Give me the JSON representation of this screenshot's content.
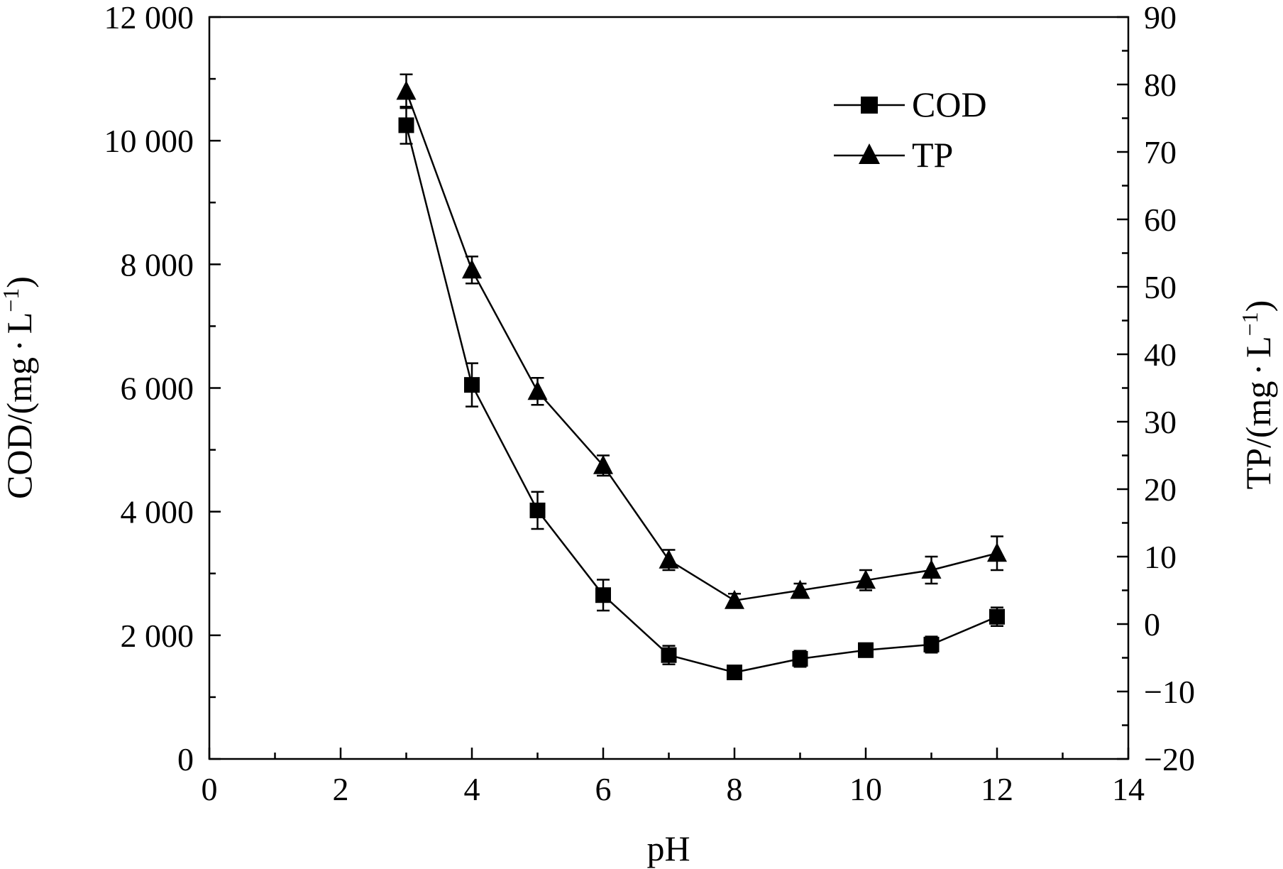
{
  "chart_data": {
    "type": "line",
    "xlabel": "pH",
    "ylabel_left_prefix": "COD/(mg",
    "ylabel_right_prefix": "TP/(mg",
    "ylabel_unit_tail": "L",
    "ylabel_unit_exp": "−1",
    "ylabel_close": ")",
    "ylabel_dot": "·",
    "xlim": [
      0,
      14
    ],
    "ylim_left": [
      0,
      12000
    ],
    "ylim_right": [
      -20,
      90
    ],
    "x_ticks": [
      0,
      2,
      4,
      6,
      8,
      10,
      12,
      14
    ],
    "x_tick_labels": [
      "0",
      "2",
      "4",
      "6",
      "8",
      "10",
      "12",
      "14"
    ],
    "left_ticks": [
      0,
      2000,
      4000,
      6000,
      8000,
      10000,
      12000
    ],
    "left_tick_labels": [
      "0",
      "2 000",
      "4 000",
      "6 000",
      "8 000",
      "10 000",
      "12 000"
    ],
    "right_ticks": [
      -20,
      -10,
      0,
      10,
      20,
      30,
      40,
      50,
      60,
      70,
      80,
      90
    ],
    "right_tick_labels": [
      "−20",
      "−10",
      "0",
      "10",
      "20",
      "30",
      "40",
      "50",
      "60",
      "70",
      "80",
      "90"
    ],
    "legend_position": "top-right",
    "grid": false,
    "x": [
      3,
      4,
      5,
      6,
      7,
      8,
      9,
      10,
      11,
      12
    ],
    "series": [
      {
        "name": "COD",
        "axis": "left",
        "marker": "square",
        "values": [
          10250,
          6050,
          4020,
          2650,
          1680,
          1400,
          1620,
          1760,
          1850,
          2300
        ],
        "errors": [
          300,
          350,
          300,
          250,
          150,
          100,
          130,
          110,
          130,
          150
        ]
      },
      {
        "name": "TP",
        "axis": "right",
        "marker": "triangle",
        "values": [
          79,
          52.5,
          34.5,
          23.5,
          9.5,
          3.5,
          5,
          6.5,
          8,
          10.5
        ],
        "errors": [
          2.5,
          2,
          2,
          1.5,
          1.5,
          1,
          1,
          1.5,
          2,
          2.5
        ]
      }
    ]
  }
}
